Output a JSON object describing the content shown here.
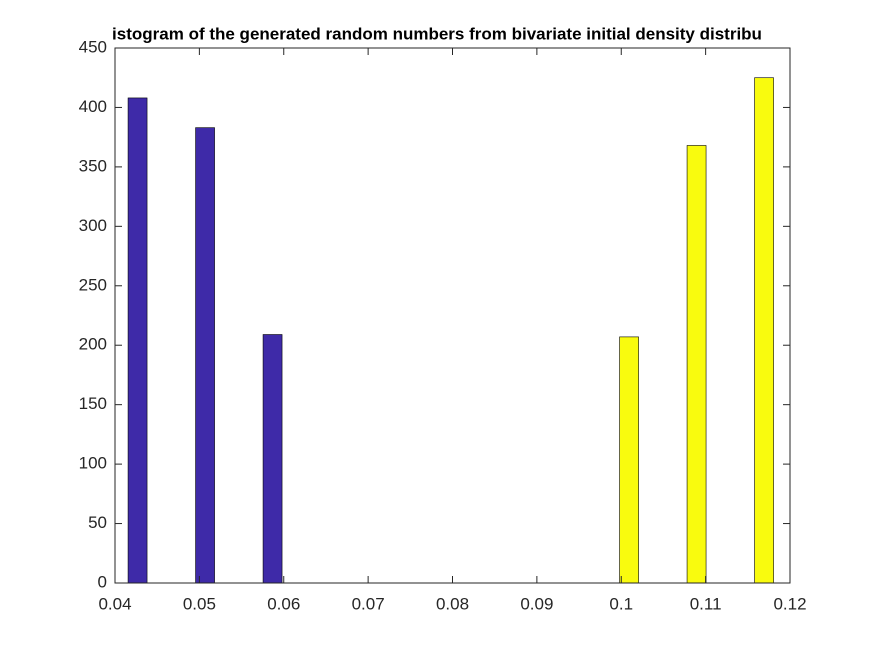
{
  "chart_data": {
    "type": "bar",
    "title": "istogram of the generated random numbers from bivariate initial density distribu",
    "x": [
      0.0438,
      0.0518,
      0.0598,
      0.0678,
      0.0758,
      0.0838,
      0.0918,
      0.0998,
      0.1078,
      0.1158
    ],
    "series": [
      {
        "color": "#3e2aa8",
        "values": [
          408,
          383,
          209,
          0,
          0,
          0,
          0,
          0,
          0,
          0
        ]
      },
      {
        "color": "#f9fb0e",
        "values": [
          0,
          0,
          0,
          0,
          0,
          0,
          0,
          207,
          368,
          425
        ]
      }
    ],
    "xlim": [
      0.04,
      0.12
    ],
    "xticks": [
      0.04,
      0.05,
      0.06,
      0.07,
      0.08,
      0.09,
      0.1,
      0.11,
      0.12
    ],
    "ylim": [
      0,
      450
    ],
    "yticks": [
      0,
      50,
      100,
      150,
      200,
      250,
      300,
      350,
      400,
      450
    ],
    "grid": false
  }
}
